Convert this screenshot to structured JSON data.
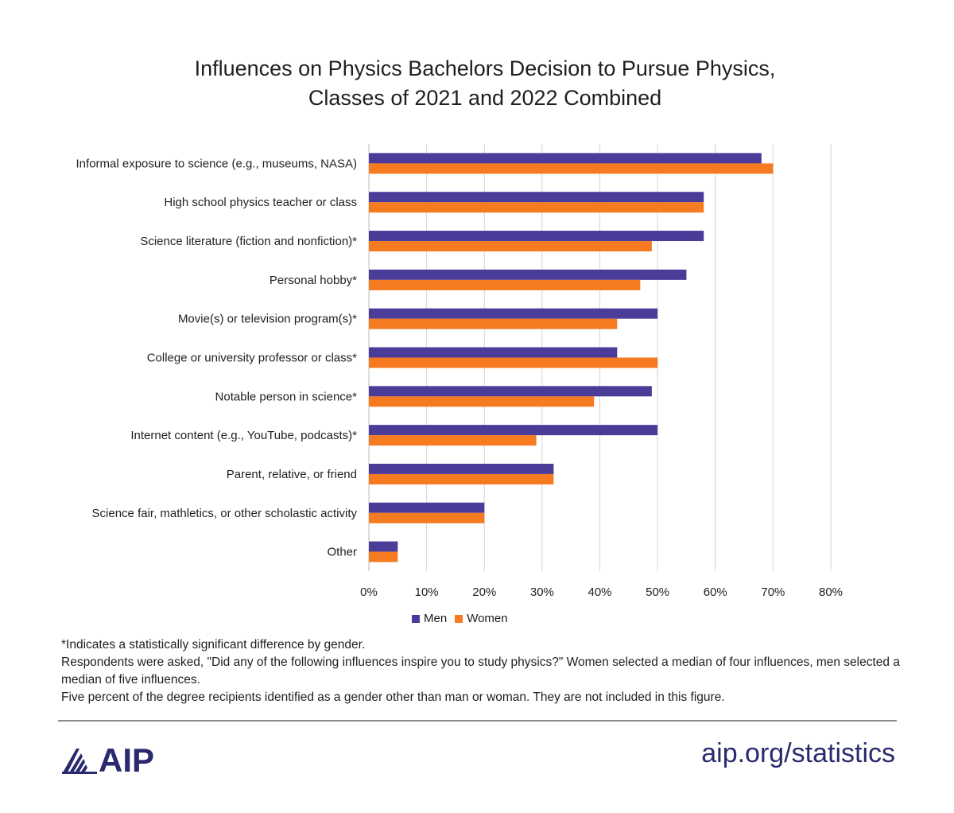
{
  "chart_data": {
    "type": "bar",
    "orientation": "horizontal",
    "title": [
      "Influences on Physics Bachelors Decision to Pursue Physics,",
      "Classes of 2021 and 2022 Combined"
    ],
    "categories": [
      "Informal exposure to science (e.g., museums, NASA)",
      "High school physics teacher or class",
      "Science literature (fiction and nonfiction)*",
      "Personal hobby*",
      "Movie(s) or television program(s)*",
      "College or university professor or class*",
      "Notable person in science*",
      "Internet content (e.g., YouTube, podcasts)*",
      "Parent, relative, or friend",
      "Science fair, mathletics, or other scholastic activity",
      "Other"
    ],
    "series": [
      {
        "name": "Men",
        "color": "#4b3c9a",
        "values": [
          68,
          58,
          58,
          55,
          50,
          43,
          49,
          50,
          32,
          20,
          5
        ]
      },
      {
        "name": "Women",
        "color": "#f57a20",
        "values": [
          70,
          58,
          49,
          47,
          43,
          50,
          39,
          29,
          32,
          20,
          5
        ]
      }
    ],
    "x_ticks": [
      "0%",
      "10%",
      "20%",
      "30%",
      "40%",
      "50%",
      "60%",
      "70%",
      "80%"
    ],
    "xlim": [
      0,
      80
    ],
    "grid": true,
    "legend_position": "bottom"
  },
  "notes": [
    "*Indicates a statistically significant difference by gender.",
    "Respondents were asked, \"Did any of the following influences inspire you to study physics?\" Women selected a median of four influences, men selected a median of five influences.",
    "Five percent of the degree recipients identified as a gender other than man or woman. They are not included in this figure."
  ],
  "footer": {
    "logo_text": "AIP",
    "site": "aip.org/statistics"
  }
}
